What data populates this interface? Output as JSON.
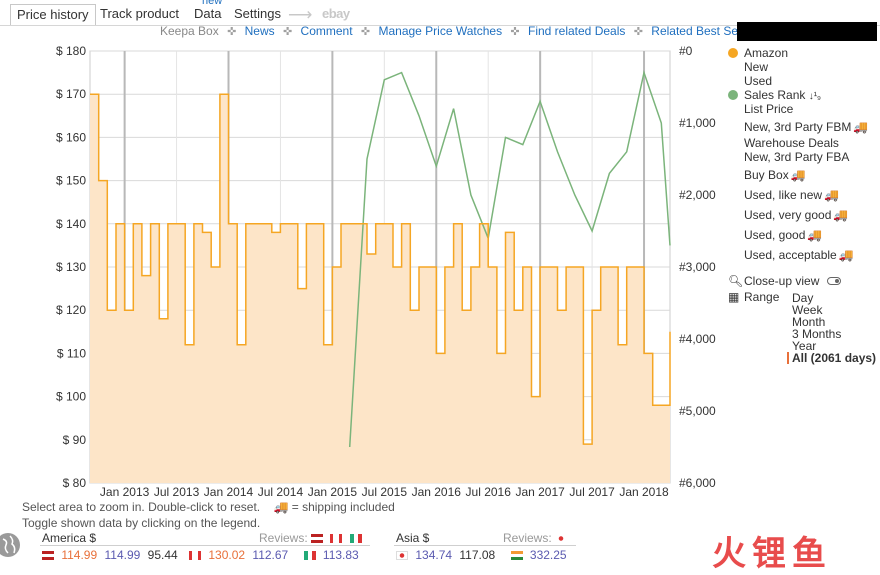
{
  "tabs": [
    {
      "label": "Price history",
      "active": true
    },
    {
      "label": "Track product"
    },
    {
      "label": "Data",
      "badge": "new"
    },
    {
      "label": "Settings"
    },
    {
      "label": "ebay"
    }
  ],
  "links": {
    "keepa_box": "Keepa Box",
    "items": [
      "News",
      "Comment",
      "Manage Price Watches",
      "Find related Deals",
      "Related Best Sellers"
    ]
  },
  "colors": {
    "amazon": "#f5a623",
    "amazon_fill": "#fde5c8",
    "sales_rank": "#7bb47b",
    "link": "#1f6fbf",
    "grid": "#d9d9d9",
    "range_active": "#e8703a"
  },
  "chart_data": {
    "type": "line",
    "x_tick_labels": [
      "Jan 2013",
      "Jul 2013",
      "Jan 2014",
      "Jul 2014",
      "Jan 2015",
      "Jul 2015",
      "Jan 2016",
      "Jul 2016",
      "Jan 2017",
      "Jul 2017",
      "Jan 2018"
    ],
    "y_left_ticks": [
      "$ 180",
      "$ 170",
      "$ 160",
      "$ 150",
      "$ 140",
      "$ 130",
      "$ 120",
      "$ 110",
      "$ 100",
      "$ 90",
      "$ 80"
    ],
    "y_right_ticks": [
      "#0",
      "#1,000",
      "#2,000",
      "#3,000",
      "#4,000",
      "#5,000",
      "#6,000"
    ],
    "ylim_left": [
      80,
      180
    ],
    "ylim_right": [
      0,
      6000
    ],
    "xlim": [
      "2012-09",
      "2018-04"
    ],
    "series": [
      {
        "name": "Amazon",
        "x": [
          "2012-09",
          "2012-10",
          "2012-11",
          "2012-12",
          "2013-01",
          "2013-02",
          "2013-03",
          "2013-04",
          "2013-05",
          "2013-06",
          "2013-07",
          "2013-08",
          "2013-09",
          "2013-10",
          "2013-11",
          "2013-12",
          "2014-01",
          "2014-02",
          "2014-03",
          "2014-04",
          "2014-05",
          "2014-06",
          "2014-07",
          "2014-08",
          "2014-09",
          "2014-10",
          "2014-11",
          "2014-12",
          "2015-01",
          "2015-02",
          "2015-03",
          "2015-04",
          "2015-05",
          "2015-06",
          "2015-07",
          "2015-08",
          "2015-09",
          "2015-10",
          "2015-11",
          "2015-12",
          "2016-01",
          "2016-02",
          "2016-03",
          "2016-04",
          "2016-05",
          "2016-06",
          "2016-07",
          "2016-08",
          "2016-09",
          "2016-10",
          "2016-11",
          "2016-12",
          "2017-01",
          "2017-02",
          "2017-03",
          "2017-04",
          "2017-05",
          "2017-06",
          "2017-07",
          "2017-08",
          "2017-09",
          "2017-10",
          "2017-11",
          "2017-12",
          "2018-01",
          "2018-02",
          "2018-03",
          "2018-04"
        ],
        "values": [
          170,
          150,
          120,
          140,
          120,
          140,
          128,
          140,
          118,
          140,
          140,
          112,
          140,
          138,
          130,
          170,
          140,
          112,
          140,
          140,
          140,
          138,
          140,
          140,
          125,
          140,
          140,
          112,
          130,
          140,
          140,
          140,
          133,
          140,
          140,
          130,
          140,
          120,
          130,
          130,
          110,
          130,
          140,
          120,
          130,
          140,
          130,
          110,
          138,
          120,
          130,
          100,
          130,
          130,
          120,
          130,
          130,
          89,
          120,
          130,
          130,
          112,
          130,
          130,
          110,
          98,
          98,
          115
        ]
      },
      {
        "name": "Sales Rank",
        "x": [
          "2015-03",
          "2015-05",
          "2015-07",
          "2015-09",
          "2015-11",
          "2016-01",
          "2016-03",
          "2016-05",
          "2016-07",
          "2016-09",
          "2016-11",
          "2017-01",
          "2017-03",
          "2017-05",
          "2017-07",
          "2017-09",
          "2017-11",
          "2018-01",
          "2018-03",
          "2018-04"
        ],
        "values": [
          5500,
          1500,
          400,
          300,
          900,
          1600,
          800,
          2000,
          2600,
          1200,
          1300,
          700,
          1400,
          2000,
          2500,
          1700,
          1400,
          300,
          1000,
          2700
        ]
      }
    ]
  },
  "legend": {
    "items": [
      {
        "label": "Amazon",
        "marker": "dot-orange"
      },
      {
        "label": "New",
        "marker": "dash"
      },
      {
        "label": "Used",
        "marker": "dash"
      },
      {
        "label": "Sales Rank",
        "marker": "dot-green",
        "suffix": "↓¹₉"
      },
      {
        "label": "List Price",
        "marker": "dash"
      },
      {
        "label": "New, 3rd Party FBM",
        "marker": "dash",
        "truck": true
      },
      {
        "label": "Warehouse Deals",
        "marker": "dash"
      },
      {
        "label": "New, 3rd Party FBA",
        "marker": "dash"
      },
      {
        "label": "Buy Box",
        "marker": "dash",
        "truck": true
      },
      {
        "label": "Used, like new",
        "marker": "dash",
        "truck": true
      },
      {
        "label": "Used, very good",
        "marker": "dash",
        "truck": true
      },
      {
        "label": "Used, good",
        "marker": "dash",
        "truck": true
      },
      {
        "label": "Used, acceptable",
        "marker": "dash",
        "truck": true
      }
    ],
    "closeup_label": "Close-up view",
    "range_label": "Range",
    "range_options": [
      "Day",
      "Week",
      "Month",
      "3 Months",
      "Year",
      "All (2061 days)"
    ],
    "range_selected": "All (2061 days)"
  },
  "hints": {
    "line1": "Select area to zoom in. Double-click to reset.",
    "line1b": "= shipping included",
    "line2": "Toggle shown data by clicking on the legend."
  },
  "markets": {
    "america_label": "America $",
    "asia_label": "Asia $",
    "reviews_label": "Reviews:",
    "us": [
      "114.99",
      "114.99",
      "95.44"
    ],
    "ca": [
      "130.02",
      "112.67"
    ],
    "mx": [
      "113.83"
    ],
    "jp": [
      "134.74",
      "117.08"
    ],
    "in": [
      "332.25"
    ]
  },
  "watermark": "火锂鱼"
}
